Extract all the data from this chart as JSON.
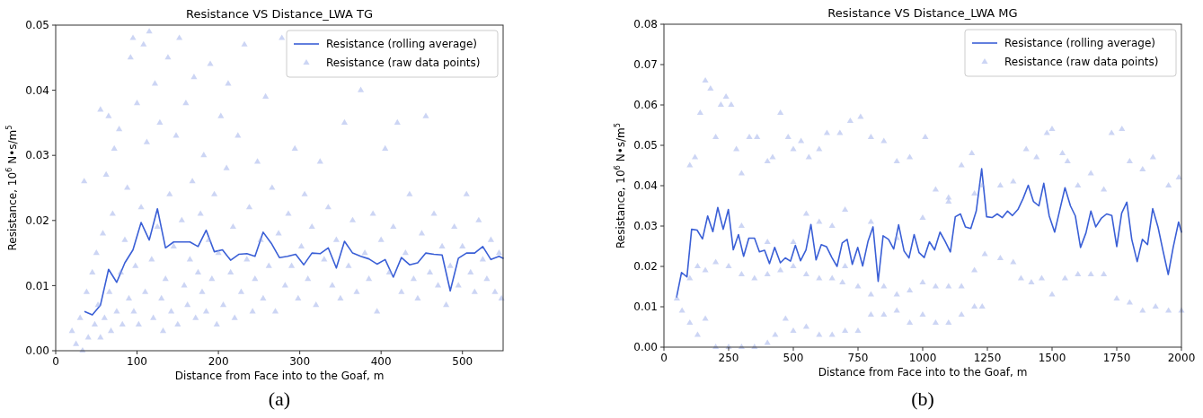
{
  "chart_data": [
    {
      "type": "scatter",
      "title": "Resistance VS Distance_LWA TG",
      "xlabel": "Distance from Face into to the Goaf, m",
      "ylabel": "Resistance, 10$^{6}$ N•s/m$^{5}$",
      "annotations": [
        "(a)"
      ],
      "xlim": [
        0,
        550
      ],
      "xticks": [
        0,
        100,
        200,
        300,
        400,
        500
      ],
      "ylim": [
        0,
        0.05
      ],
      "yticks": [
        {
          "value": 0,
          "label": "0.00"
        },
        {
          "value": 0.01,
          "label": "0.01"
        },
        {
          "value": 0.02,
          "label": "0.02"
        },
        {
          "value": 0.03,
          "label": "0.03"
        },
        {
          "value": 0.04,
          "label": "0.04"
        },
        {
          "value": 0.05,
          "label": "0.05"
        }
      ],
      "grid": false,
      "legend": "top right",
      "series": [
        {
          "name": "Resistance (rolling average)",
          "type": "line",
          "marker": "none",
          "color": "#3a5fd6",
          "x": [
            36,
            45,
            55,
            65,
            75,
            85,
            95,
            105,
            115,
            125,
            135,
            145,
            155,
            165,
            175,
            185,
            195,
            205,
            215,
            225,
            235,
            245,
            255,
            265,
            275,
            285,
            295,
            305,
            315,
            325,
            335,
            345,
            355,
            365,
            375,
            385,
            395,
            405,
            415,
            425,
            435,
            445,
            455,
            465,
            475,
            485,
            495,
            505,
            515,
            525,
            535,
            545,
            550
          ],
          "values": [
            0.006,
            0.0055,
            0.007,
            0.0125,
            0.0105,
            0.0135,
            0.0155,
            0.0197,
            0.017,
            0.0218,
            0.0158,
            0.0167,
            0.0167,
            0.0167,
            0.016,
            0.0185,
            0.0152,
            0.0155,
            0.0139,
            0.0148,
            0.0149,
            0.0145,
            0.0182,
            0.0165,
            0.0143,
            0.0145,
            0.0148,
            0.0132,
            0.015,
            0.0149,
            0.0158,
            0.0127,
            0.0168,
            0.015,
            0.0145,
            0.0141,
            0.0133,
            0.014,
            0.0113,
            0.0143,
            0.0132,
            0.0135,
            0.015,
            0.0148,
            0.0147,
            0.0092,
            0.0142,
            0.015,
            0.015,
            0.016,
            0.014,
            0.0145,
            0.0142
          ]
        },
        {
          "name": "Resistance (raw data points)",
          "marker": "triangle",
          "color": "#8ea2e6",
          "x": [
            20,
            25,
            30,
            33,
            35,
            38,
            40,
            45,
            48,
            50,
            52,
            55,
            55,
            58,
            60,
            62,
            65,
            66,
            68,
            70,
            72,
            75,
            78,
            80,
            82,
            85,
            88,
            90,
            92,
            95,
            96,
            98,
            100,
            102,
            105,
            108,
            110,
            112,
            115,
            118,
            120,
            122,
            125,
            128,
            130,
            132,
            135,
            138,
            140,
            142,
            145,
            148,
            150,
            152,
            155,
            158,
            160,
            162,
            165,
            168,
            170,
            172,
            175,
            178,
            180,
            182,
            185,
            188,
            190,
            192,
            195,
            198,
            200,
            203,
            206,
            210,
            212,
            215,
            218,
            220,
            224,
            228,
            232,
            235,
            238,
            242,
            245,
            248,
            252,
            255,
            258,
            262,
            266,
            270,
            274,
            278,
            282,
            286,
            290,
            294,
            298,
            302,
            306,
            310,
            315,
            320,
            325,
            330,
            335,
            340,
            345,
            350,
            355,
            360,
            365,
            370,
            375,
            380,
            385,
            390,
            395,
            400,
            405,
            410,
            415,
            420,
            425,
            430,
            435,
            440,
            445,
            450,
            455,
            460,
            465,
            470,
            475,
            480,
            485,
            490,
            495,
            500,
            505,
            510,
            515,
            520,
            525,
            530,
            535,
            540,
            545,
            548
          ],
          "values": [
            0.003,
            0.001,
            0.005,
            0.0,
            0.026,
            0.009,
            0.002,
            0.012,
            0.004,
            0.015,
            0.007,
            0.037,
            0.002,
            0.018,
            0.005,
            0.027,
            0.036,
            0.009,
            0.003,
            0.021,
            0.031,
            0.006,
            0.034,
            0.012,
            0.004,
            0.017,
            0.025,
            0.008,
            0.045,
            0.048,
            0.006,
            0.013,
            0.038,
            0.004,
            0.022,
            0.047,
            0.009,
            0.032,
            0.049,
            0.014,
            0.005,
            0.041,
            0.019,
            0.035,
            0.008,
            0.003,
            0.011,
            0.045,
            0.024,
            0.006,
            0.016,
            0.033,
            0.004,
            0.048,
            0.02,
            0.01,
            0.038,
            0.007,
            0.014,
            0.026,
            0.042,
            0.005,
            0.012,
            0.021,
            0.009,
            0.03,
            0.006,
            0.017,
            0.044,
            0.011,
            0.024,
            0.004,
            0.015,
            0.036,
            0.007,
            0.028,
            0.041,
            0.012,
            0.019,
            0.005,
            0.033,
            0.009,
            0.047,
            0.014,
            0.022,
            0.006,
            0.011,
            0.029,
            0.017,
            0.008,
            0.039,
            0.013,
            0.025,
            0.006,
            0.018,
            0.048,
            0.01,
            0.021,
            0.013,
            0.031,
            0.008,
            0.016,
            0.024,
            0.011,
            0.019,
            0.007,
            0.029,
            0.014,
            0.022,
            0.01,
            0.017,
            0.008,
            0.035,
            0.013,
            0.02,
            0.009,
            0.04,
            0.015,
            0.011,
            0.021,
            0.006,
            0.017,
            0.031,
            0.012,
            0.019,
            0.035,
            0.009,
            0.015,
            0.024,
            0.011,
            0.008,
            0.018,
            0.036,
            0.012,
            0.021,
            0.01,
            0.016,
            0.007,
            0.013,
            0.019,
            0.01,
            0.016,
            0.024,
            0.012,
            0.009,
            0.02,
            0.014,
            0.011,
            0.017,
            0.009,
            0.015,
            0.008
          ]
        }
      ]
    },
    {
      "type": "scatter",
      "title": "Resistance VS Distance_LWA MG",
      "xlabel": "Distance from Face into to the Goaf, m",
      "ylabel": "Resistance, 10$^{6}$ N•s/m$^{5}$",
      "annotations": [
        "(b)"
      ],
      "xlim": [
        0,
        2000
      ],
      "xticks": [
        0,
        250,
        500,
        750,
        1000,
        1250,
        1500,
        1750,
        2000
      ],
      "ylim": [
        0,
        0.08
      ],
      "yticks": [
        {
          "value": 0,
          "label": "0.00"
        },
        {
          "value": 0.01,
          "label": "0.01"
        },
        {
          "value": 0.02,
          "label": "0.02"
        },
        {
          "value": 0.03,
          "label": "0.03"
        },
        {
          "value": 0.04,
          "label": "0.04"
        },
        {
          "value": 0.05,
          "label": "0.05"
        },
        {
          "value": 0.06,
          "label": "0.06"
        },
        {
          "value": 0.07,
          "label": "0.07"
        },
        {
          "value": 0.08,
          "label": "0.08"
        }
      ],
      "grid": false,
      "legend": "top right",
      "series": [
        {
          "name": "Resistance (rolling average)",
          "type": "line",
          "marker": "none",
          "color": "#3a5fd6",
          "x": [
            49,
            68,
            89,
            107,
            128,
            149,
            169,
            189,
            208,
            229,
            249,
            268,
            288,
            308,
            328,
            350,
            369,
            389,
            408,
            428,
            450,
            469,
            489,
            508,
            528,
            549,
            568,
            588,
            608,
            628,
            649,
            669,
            689,
            708,
            728,
            749,
            768,
            789,
            808,
            828,
            847,
            868,
            888,
            907,
            928,
            947,
            967,
            986,
            1006,
            1026,
            1046,
            1067,
            1086,
            1107,
            1126,
            1146,
            1165,
            1186,
            1207,
            1228,
            1247,
            1268,
            1288,
            1308,
            1328,
            1347,
            1368,
            1388,
            1408,
            1428,
            1449,
            1468,
            1489,
            1510,
            1531,
            1550,
            1571,
            1590,
            1610,
            1631,
            1650,
            1669,
            1690,
            1711,
            1731,
            1750,
            1769,
            1789,
            1808,
            1829,
            1849,
            1869,
            1889,
            1910,
            1929,
            1949,
            1968,
            1989,
            2000
          ],
          "values": [
            0.0124,
            0.0185,
            0.0174,
            0.0292,
            0.029,
            0.0268,
            0.0325,
            0.0286,
            0.0346,
            0.0292,
            0.0341,
            0.0241,
            0.0279,
            0.0225,
            0.027,
            0.027,
            0.0236,
            0.024,
            0.0207,
            0.0247,
            0.0209,
            0.0221,
            0.0213,
            0.0252,
            0.0214,
            0.0241,
            0.0304,
            0.0216,
            0.0254,
            0.0249,
            0.0222,
            0.02,
            0.0258,
            0.0267,
            0.0205,
            0.0247,
            0.0201,
            0.0263,
            0.0298,
            0.0163,
            0.0276,
            0.0267,
            0.0243,
            0.0303,
            0.0238,
            0.0221,
            0.0279,
            0.0234,
            0.0222,
            0.0261,
            0.0241,
            0.0285,
            0.0263,
            0.0236,
            0.0323,
            0.033,
            0.0298,
            0.0294,
            0.0337,
            0.0442,
            0.0323,
            0.0321,
            0.033,
            0.0321,
            0.0337,
            0.0326,
            0.0341,
            0.0368,
            0.0401,
            0.0361,
            0.035,
            0.0406,
            0.0325,
            0.0285,
            0.0343,
            0.0395,
            0.035,
            0.0325,
            0.0247,
            0.0283,
            0.0337,
            0.0298,
            0.0319,
            0.033,
            0.0326,
            0.0249,
            0.0332,
            0.0359,
            0.0267,
            0.0212,
            0.0267,
            0.0254,
            0.0343,
            0.0296,
            0.0238,
            0.018,
            0.0247,
            0.031,
            0.0285
          ]
        },
        {
          "name": "Resistance (raw data points)",
          "marker": "triangle",
          "color": "#8ea2e6",
          "x": [
            100,
            120,
            140,
            160,
            180,
            200,
            220,
            240,
            260,
            280,
            300,
            330,
            360,
            400,
            420,
            450,
            480,
            500,
            530,
            560,
            600,
            630,
            680,
            720,
            760,
            800,
            850,
            900,
            950,
            1010,
            1050,
            1100,
            1150,
            1190,
            1230,
            1300,
            1350,
            1400,
            1440,
            1480,
            1500,
            1540,
            1560,
            1600,
            1650,
            1700,
            1730,
            1770,
            1800,
            1850,
            1890,
            1950,
            1990,
            50,
            100,
            130,
            160,
            200,
            250,
            300,
            350,
            400,
            450,
            500,
            550,
            600,
            650,
            690,
            700,
            750,
            800,
            850,
            900,
            950,
            1000,
            1050,
            1100,
            1150,
            1200,
            1240,
            1300,
            1350,
            1380,
            1420,
            1460,
            1500,
            1550,
            1600,
            1650,
            1700,
            1750,
            1800,
            1850,
            1900,
            1950,
            2000,
            70,
            100,
            130,
            160,
            200,
            250,
            300,
            350,
            400,
            430,
            470,
            500,
            550,
            600,
            650,
            700,
            750,
            800,
            850,
            900,
            950,
            1000,
            1050,
            1100,
            1150,
            1200,
            1230,
            300,
            400,
            500,
            550,
            600,
            650,
            700,
            800,
            900,
            1000,
            1100,
            1200
          ],
          "values": [
            0.045,
            0.047,
            0.058,
            0.066,
            0.064,
            0.052,
            0.06,
            0.062,
            0.06,
            0.049,
            0.043,
            0.052,
            0.052,
            0.046,
            0.047,
            0.058,
            0.052,
            0.049,
            0.051,
            0.047,
            0.049,
            0.053,
            0.053,
            0.056,
            0.057,
            0.052,
            0.051,
            0.046,
            0.047,
            0.052,
            0.039,
            0.037,
            0.045,
            0.048,
            0.04,
            0.04,
            0.041,
            0.049,
            0.047,
            0.053,
            0.054,
            0.048,
            0.046,
            0.04,
            0.043,
            0.039,
            0.053,
            0.054,
            0.046,
            0.044,
            0.047,
            0.04,
            0.042,
            0.012,
            0.017,
            0.02,
            0.019,
            0.021,
            0.02,
            0.018,
            0.017,
            0.018,
            0.019,
            0.02,
            0.018,
            0.017,
            0.017,
            0.016,
            0.02,
            0.015,
            0.013,
            0.015,
            0.013,
            0.014,
            0.016,
            0.015,
            0.015,
            0.015,
            0.019,
            0.023,
            0.022,
            0.021,
            0.017,
            0.016,
            0.017,
            0.013,
            0.017,
            0.018,
            0.018,
            0.018,
            0.012,
            0.011,
            0.009,
            0.01,
            0.009,
            0.009,
            0.009,
            0.006,
            0.003,
            0.007,
            0.0,
            0.0,
            0.0,
            0.0,
            0.001,
            0.003,
            0.007,
            0.004,
            0.005,
            0.003,
            0.003,
            0.004,
            0.004,
            0.008,
            0.008,
            0.009,
            0.006,
            0.008,
            0.006,
            0.006,
            0.008,
            0.01,
            0.01,
            0.03,
            0.026,
            0.026,
            0.033,
            0.031,
            0.03,
            0.034,
            0.031,
            0.027,
            0.032,
            0.036,
            0.038
          ]
        }
      ]
    }
  ]
}
